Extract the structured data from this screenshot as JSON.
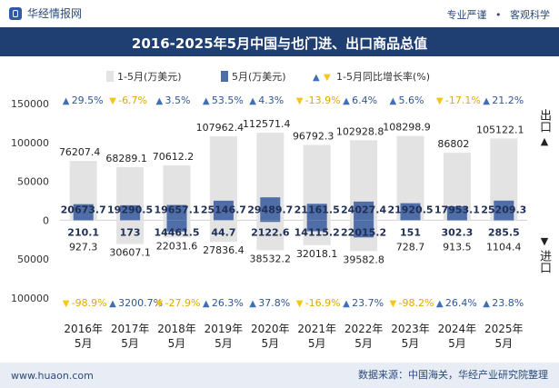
{
  "header": {
    "brand": "华经情报网",
    "tag_1": "专业严谨",
    "tag_sep": "•",
    "tag_2": "客观科学"
  },
  "title": "2016-2025年5月中国与也门进、出口商品总值",
  "footer": {
    "site": "www.huaon.com",
    "source": "数据来源：中国海关，华经产业研究院整理"
  },
  "side_labels": {
    "export": "出口",
    "import": "进口"
  },
  "colors": {
    "cumulative_bar": "#e3e3e3",
    "month_bar": "#4f6da7",
    "up_marker": "#3f6fb7",
    "down_marker": "#f5c518",
    "up_text": "#2f5597",
    "down_text": "#e0a800"
  },
  "chart_data": {
    "type": "bar",
    "legend_position": "top",
    "legend": {
      "cumulative": "1-5月(万美元)",
      "month": "5月(万美元)",
      "growth": "1-5月同比增长率(%)"
    },
    "categories": [
      "2016年\n5月",
      "2017年\n5月",
      "2018年\n5月",
      "2019年\n5月",
      "2020年\n5月",
      "2021年\n5月",
      "2022年\n5月",
      "2023年\n5月",
      "2024年\n5月",
      "2025年\n5月"
    ],
    "ylim": [
      -100000,
      150000
    ],
    "yticks": [
      -100000,
      -50000,
      0,
      50000,
      100000,
      150000
    ],
    "ytick_labels": [
      "100000",
      "50000",
      "0",
      "50000",
      "100000",
      "150000"
    ],
    "grid": false,
    "export": {
      "cumulative": [
        76207.4,
        68289.1,
        70612.2,
        107962.4,
        112571.4,
        96792.3,
        102928.8,
        108298.9,
        86802,
        105122.1
      ],
      "cumulative_labels": [
        "76207.4",
        "68289.1",
        "70612.2",
        "107962.4",
        "112571.4",
        "96792.3",
        "102928.8",
        "108298.9",
        "86802",
        "105122.1"
      ],
      "month": [
        20673.7,
        19290.5,
        19657.1,
        25146.7,
        29489.7,
        21161.5,
        24027.4,
        21920.5,
        17953.1,
        25209.3
      ],
      "month_labels": [
        "20673.7",
        "19290.5",
        "19657.1",
        "25146.7",
        "29489.7",
        "21161.5",
        "24027.4",
        "21920.5",
        "17953.1",
        "25209.3"
      ],
      "growth": [
        29.5,
        -6.7,
        3.5,
        53.5,
        4.3,
        -13.9,
        6.4,
        5.6,
        -17.1,
        21.2
      ],
      "growth_labels": [
        "29.5%",
        "-6.7%",
        "3.5%",
        "53.5%",
        "4.3%",
        "-13.9%",
        "6.4%",
        "5.6%",
        "-17.1%",
        "21.2%"
      ]
    },
    "import": {
      "cumulative": [
        927.3,
        30607.1,
        22031.6,
        27836.4,
        38532.2,
        32018.1,
        39582.8,
        728.7,
        913.5,
        1104.4
      ],
      "cumulative_labels": [
        "927.3",
        "30607.1",
        "22031.6",
        "27836.4",
        "38532.2",
        "32018.1",
        "39582.8",
        "728.7",
        "913.5",
        "1104.4"
      ],
      "month": [
        210.1,
        173,
        14461.5,
        44.7,
        2122.6,
        14115.2,
        22015.2,
        151,
        302.3,
        285.5
      ],
      "month_labels": [
        "210.1",
        "173",
        "14461.5",
        "44.7",
        "2122.6",
        "14115.2",
        "22015.2",
        "151",
        "302.3",
        "285.5"
      ],
      "growth": [
        -98.9,
        3200.7,
        -27.9,
        26.3,
        37.8,
        -16.9,
        23.7,
        -98.2,
        26.4,
        23.8
      ],
      "growth_labels": [
        "-98.9%",
        "3200.7%",
        "-27.9%",
        "26.3%",
        "37.8%",
        "-16.9%",
        "23.7%",
        "-98.2%",
        "26.4%",
        "23.8%"
      ]
    }
  }
}
